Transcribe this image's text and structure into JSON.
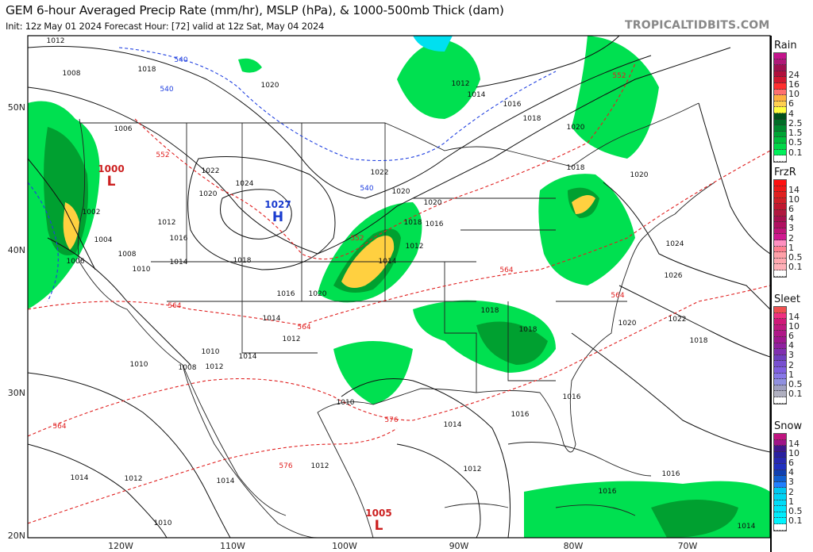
{
  "header": {
    "title": "GEM 6-hour Averaged Precip Rate (mm/hr), MSLP (hPa), & 1000-500mb Thick (dam)",
    "subtitle": "Init: 12z May 01 2024   Forecast Hour: [72]   valid at 12z Sat, May 04 2024",
    "brand": "TROPICALTIDBITS.COM"
  },
  "map": {
    "latitude_labels": [
      "50N",
      "40N",
      "30N",
      "20N"
    ],
    "longitude_labels": [
      "120W",
      "110W",
      "100W",
      "90W",
      "80W",
      "70W"
    ],
    "pressure_centers": [
      {
        "type": "H",
        "value": "1027",
        "color": "#1a3ccf"
      },
      {
        "type": "L",
        "value": "1000",
        "color": "#cc2020"
      },
      {
        "type": "L",
        "value": "1005",
        "color": "#cc2020"
      }
    ],
    "isobar_labels": [
      "1012",
      "1008",
      "1018",
      "1020",
      "1012",
      "1014",
      "1016",
      "1018",
      "1020",
      "1006",
      "1022",
      "1020",
      "1024",
      "1022",
      "1020",
      "1018",
      "1016",
      "1012",
      "1014",
      "1002",
      "1004",
      "1006",
      "1008",
      "1010",
      "1012",
      "1016",
      "1014",
      "1018",
      "1016",
      "1020",
      "1014",
      "1012",
      "1010",
      "1008",
      "1012",
      "1014",
      "1010",
      "1012",
      "1014",
      "1010",
      "1016",
      "1018",
      "1018",
      "1016",
      "1014",
      "1012",
      "1018",
      "1020",
      "1020",
      "1022",
      "1024",
      "1026",
      "1020",
      "1018",
      "1016",
      "1016",
      "1014",
      "1012",
      "1010",
      "1014"
    ],
    "thickness_labels": [
      "540",
      "540",
      "540",
      "552",
      "552",
      "552",
      "564",
      "564",
      "564",
      "564",
      "564",
      "576",
      "576"
    ],
    "colors": {
      "isobar": "#111111",
      "thickness_low": "#2040e0",
      "thickness_high": "#e02020",
      "rain_light": "#00e050",
      "rain_mid": "#00a030",
      "rain_heavy": "#ffd040"
    }
  },
  "legend": [
    {
      "title": "Rain",
      "labels": [
        "24",
        "16",
        "10",
        "6",
        "4",
        "2.5",
        "1.5",
        "0.5",
        "0.1"
      ],
      "colors": [
        "#c4148c",
        "#b01878",
        "#a01050",
        "#b0103c",
        "#d01830",
        "#ff3030",
        "#ff7070",
        "#ffb040",
        "#ffd050",
        "#ffff40",
        "#00501c",
        "#006e26",
        "#008a2e",
        "#00a434",
        "#00be3c",
        "#00d848",
        "#00f05a",
        "#ffffff"
      ]
    },
    {
      "title": "FrzR",
      "labels": [
        "14",
        "10",
        "6",
        "4",
        "3",
        "2",
        "1",
        "0.5",
        "0.1"
      ],
      "colors": [
        "#ff1010",
        "#f01818",
        "#e02020",
        "#d02028",
        "#c01830",
        "#b01840",
        "#a81050",
        "#b01060",
        "#c01478",
        "#d01890",
        "#ff90c0",
        "#ff8090",
        "#ffa0a8",
        "#ffa8b0",
        "#ffb0b8",
        "#ffffff"
      ]
    },
    {
      "title": "Sleet",
      "labels": [
        "14",
        "10",
        "6",
        "4",
        "3",
        "2",
        "1",
        "0.5",
        "0.1"
      ],
      "colors": [
        "#f05050",
        "#f03080",
        "#d01878",
        "#c01880",
        "#b01888",
        "#a01890",
        "#9020a0",
        "#8030b0",
        "#7040c0",
        "#7850d0",
        "#8060e0",
        "#8878e8",
        "#9090e0",
        "#a0a0c0",
        "#b0b0c0",
        "#ffffff"
      ]
    },
    {
      "title": "Snow",
      "labels": [
        "14",
        "10",
        "6",
        "4",
        "3",
        "2",
        "1",
        "0.5",
        "0.1"
      ],
      "colors": [
        "#c01480",
        "#a01488",
        "#40188c",
        "#2a20a0",
        "#2828b0",
        "#2030c0",
        "#1040b0",
        "#1060d0",
        "#2080ff",
        "#00c8f0",
        "#00d4f4",
        "#00dcf8",
        "#00e4fa",
        "#00ecfc",
        "#00f4fe",
        "#ffffff"
      ]
    }
  ]
}
